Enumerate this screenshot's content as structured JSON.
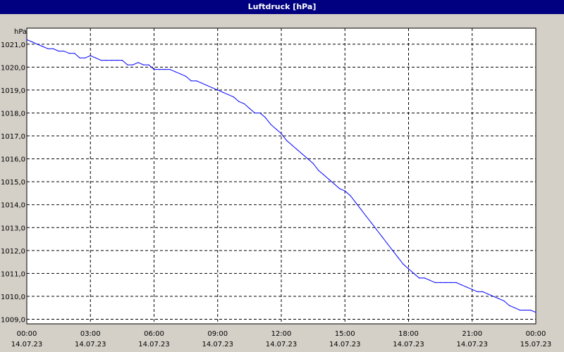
{
  "window": {
    "title": "Luftdruck [hPa]"
  },
  "chart_data": {
    "type": "line",
    "title": "Luftdruck [hPa]",
    "ylabel": "hPa",
    "xlabel": "",
    "ylim": [
      1008.8,
      1021.7
    ],
    "xlim_hours": [
      0,
      24
    ],
    "y_ticks": [
      "1009,0",
      "1010,0",
      "1011,0",
      "1012,0",
      "1013,0",
      "1014,0",
      "1015,0",
      "1016,0",
      "1017,0",
      "1018,0",
      "1019,0",
      "1020,0",
      "1021,0"
    ],
    "x_ticks": [
      {
        "time": "00:00",
        "date": "14.07.23"
      },
      {
        "time": "03:00",
        "date": "14.07.23"
      },
      {
        "time": "06:00",
        "date": "14.07.23"
      },
      {
        "time": "09:00",
        "date": "14.07.23"
      },
      {
        "time": "12:00",
        "date": "14.07.23"
      },
      {
        "time": "15:00",
        "date": "14.07.23"
      },
      {
        "time": "18:00",
        "date": "14.07.23"
      },
      {
        "time": "21:00",
        "date": "14.07.23"
      },
      {
        "time": "00:00",
        "date": "15.07.23"
      }
    ],
    "grid": true,
    "line_color": "#0000ff",
    "series": [
      {
        "x": [
          0.0,
          0.25,
          0.5,
          0.75,
          1.0,
          1.25,
          1.5,
          1.75,
          2.0,
          2.25,
          2.5,
          2.75,
          3.0,
          3.25,
          3.5,
          3.75,
          4.0,
          4.25,
          4.5,
          4.75,
          5.0,
          5.25,
          5.5,
          5.75,
          6.0,
          6.25,
          6.5,
          6.75,
          7.0,
          7.25,
          7.5,
          7.75,
          8.0,
          8.25,
          8.5,
          8.75,
          9.0,
          9.25,
          9.5,
          9.75,
          10.0,
          10.25,
          10.5,
          10.75,
          11.0,
          11.25,
          11.5,
          11.75,
          12.0,
          12.25,
          12.5,
          12.75,
          13.0,
          13.25,
          13.5,
          13.75,
          14.0,
          14.25,
          14.5,
          14.75,
          15.0,
          15.25,
          15.5,
          15.75,
          16.0,
          16.25,
          16.5,
          16.75,
          17.0,
          17.25,
          17.5,
          17.75,
          18.0,
          18.25,
          18.5,
          18.75,
          19.0,
          19.25,
          19.5,
          19.75,
          20.0,
          20.25,
          20.5,
          20.75,
          21.0,
          21.25,
          21.5,
          21.75,
          22.0,
          22.25,
          22.5,
          22.75,
          23.0,
          23.25,
          23.5,
          23.75,
          24.0
        ],
        "y": [
          1021.2,
          1021.1,
          1021.0,
          1020.9,
          1020.8,
          1020.8,
          1020.7,
          1020.7,
          1020.6,
          1020.6,
          1020.4,
          1020.4,
          1020.5,
          1020.4,
          1020.3,
          1020.3,
          1020.3,
          1020.3,
          1020.3,
          1020.1,
          1020.1,
          1020.2,
          1020.1,
          1020.1,
          1019.9,
          1019.9,
          1019.9,
          1019.9,
          1019.8,
          1019.7,
          1019.6,
          1019.4,
          1019.4,
          1019.3,
          1019.2,
          1019.1,
          1019.0,
          1018.9,
          1018.8,
          1018.7,
          1018.5,
          1018.4,
          1018.2,
          1018.0,
          1018.0,
          1017.8,
          1017.5,
          1017.3,
          1017.1,
          1016.8,
          1016.6,
          1016.4,
          1016.2,
          1016.0,
          1015.8,
          1015.5,
          1015.3,
          1015.1,
          1014.9,
          1014.7,
          1014.6,
          1014.4,
          1014.1,
          1013.8,
          1013.5,
          1013.2,
          1012.9,
          1012.6,
          1012.3,
          1012.0,
          1011.7,
          1011.4,
          1011.2,
          1011.0,
          1010.8,
          1010.8,
          1010.7,
          1010.6,
          1010.6,
          1010.6,
          1010.6,
          1010.6,
          1010.5,
          1010.4,
          1010.3,
          1010.2,
          1010.2,
          1010.1,
          1010.0,
          1009.9,
          1009.8,
          1009.6,
          1009.5,
          1009.4,
          1009.4,
          1009.4,
          1009.3
        ]
      }
    ]
  }
}
